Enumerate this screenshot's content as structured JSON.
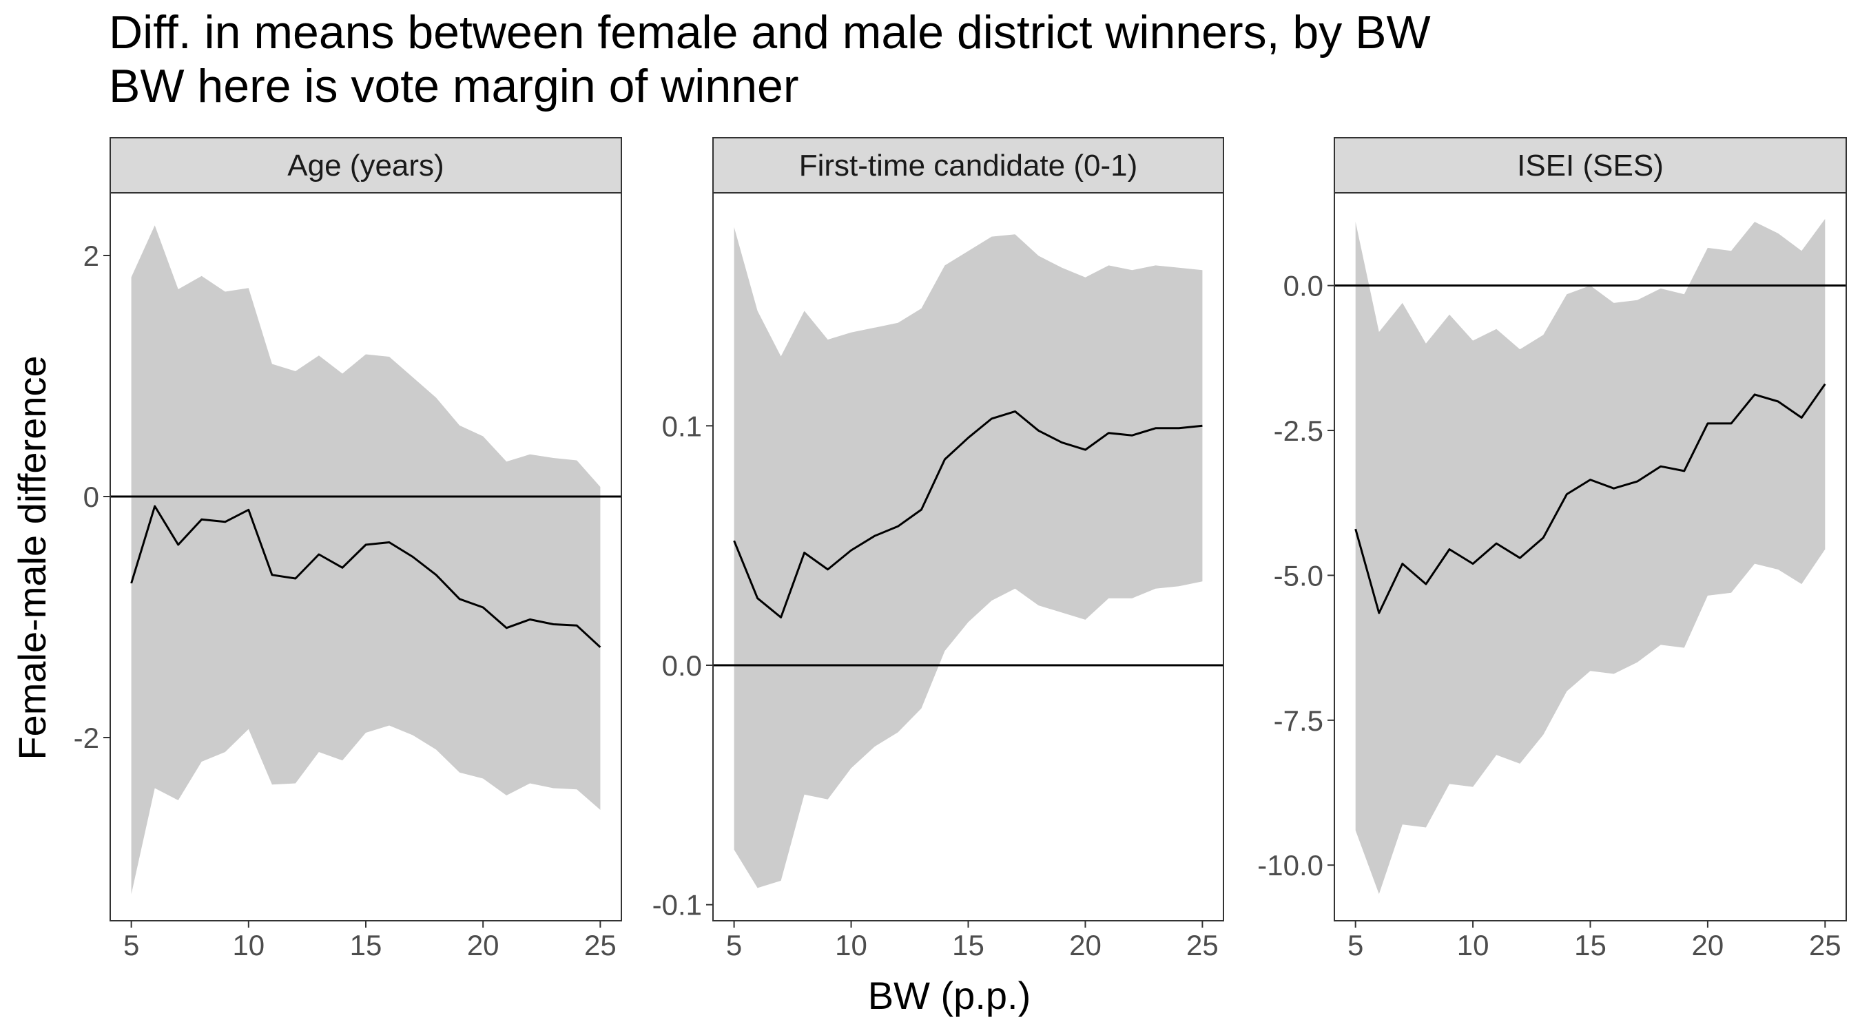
{
  "title": "Diff. in means between female and male district winners, by BW",
  "subtitle": "BW here is vote margin of winner",
  "xlabel": "BW (p.p.)",
  "ylabel": "Female-male difference",
  "colors": {
    "ribbon": "#cccccc",
    "line": "#000000",
    "strip": "#d9d9d9",
    "panel_border": "#333333"
  },
  "chart_data": [
    {
      "type": "line",
      "panel_title": "Age (years)",
      "x": [
        5,
        6,
        7,
        8,
        9,
        10,
        11,
        12,
        13,
        14,
        15,
        16,
        17,
        18,
        19,
        20,
        21,
        22,
        23,
        24,
        25
      ],
      "series": [
        {
          "values": [
            -0.72,
            -0.08,
            -0.4,
            -0.19,
            -0.21,
            -0.11,
            -0.65,
            -0.68,
            -0.48,
            -0.59,
            -0.4,
            -0.38,
            -0.5,
            -0.65,
            -0.85,
            -0.92,
            -1.09,
            -1.02,
            -1.06,
            -1.07,
            -1.25
          ],
          "ci_low": [
            -3.3,
            -2.42,
            -2.52,
            -2.2,
            -2.12,
            -1.93,
            -2.39,
            -2.38,
            -2.12,
            -2.19,
            -1.96,
            -1.9,
            -1.98,
            -2.1,
            -2.29,
            -2.34,
            -2.48,
            -2.38,
            -2.42,
            -2.43,
            -2.6
          ],
          "ci_high": [
            1.82,
            2.25,
            1.72,
            1.83,
            1.7,
            1.73,
            1.1,
            1.04,
            1.17,
            1.02,
            1.18,
            1.16,
            0.99,
            0.82,
            0.59,
            0.5,
            0.29,
            0.35,
            0.32,
            0.3,
            0.08
          ]
        }
      ],
      "xlim": [
        4.1,
        25.9
      ],
      "ylim": [
        -3.52,
        2.52
      ],
      "xticks": [
        5,
        10,
        15,
        20,
        25
      ],
      "yticks": [
        2,
        0,
        -2
      ],
      "ytick_labels": [
        "2",
        "0",
        "-2"
      ],
      "hline": 0
    },
    {
      "type": "line",
      "panel_title": "First-time candidate (0-1)",
      "x": [
        5,
        6,
        7,
        8,
        9,
        10,
        11,
        12,
        13,
        14,
        15,
        16,
        17,
        18,
        19,
        20,
        21,
        22,
        23,
        24,
        25
      ],
      "series": [
        {
          "values": [
            0.052,
            0.028,
            0.02,
            0.047,
            0.04,
            0.048,
            0.054,
            0.058,
            0.065,
            0.086,
            0.095,
            0.103,
            0.106,
            0.098,
            0.093,
            0.09,
            0.097,
            0.096,
            0.099,
            0.099,
            0.1
          ],
          "ci_low": [
            -0.077,
            -0.093,
            -0.09,
            -0.054,
            -0.056,
            -0.043,
            -0.034,
            -0.028,
            -0.018,
            0.006,
            0.018,
            0.027,
            0.032,
            0.025,
            0.022,
            0.019,
            0.028,
            0.028,
            0.032,
            0.033,
            0.035
          ],
          "ci_high": [
            0.183,
            0.148,
            0.129,
            0.148,
            0.136,
            0.139,
            0.141,
            0.143,
            0.149,
            0.167,
            0.173,
            0.179,
            0.18,
            0.171,
            0.166,
            0.162,
            0.167,
            0.165,
            0.167,
            0.166,
            0.165
          ]
        }
      ],
      "xlim": [
        4.1,
        25.9
      ],
      "ylim": [
        -0.1067,
        0.1973
      ],
      "xticks": [
        5,
        10,
        15,
        20,
        25
      ],
      "yticks": [
        0.1,
        0,
        -0.1
      ],
      "ytick_labels": [
        "0.1",
        "0.0",
        "-0.1"
      ],
      "hline": 0
    },
    {
      "type": "line",
      "panel_title": "ISEI (SES)",
      "x": [
        5,
        6,
        7,
        8,
        9,
        10,
        11,
        12,
        13,
        14,
        15,
        16,
        17,
        18,
        19,
        20,
        21,
        22,
        23,
        24,
        25
      ],
      "series": [
        {
          "values": [
            -4.2,
            -5.65,
            -4.8,
            -5.15,
            -4.55,
            -4.8,
            -4.45,
            -4.7,
            -4.35,
            -3.6,
            -3.35,
            -3.5,
            -3.38,
            -3.12,
            -3.2,
            -2.38,
            -2.38,
            -1.88,
            -2.0,
            -2.28,
            -1.7
          ],
          "ci_low": [
            -9.4,
            -10.5,
            -9.3,
            -9.35,
            -8.6,
            -8.65,
            -8.1,
            -8.25,
            -7.75,
            -7.0,
            -6.65,
            -6.7,
            -6.5,
            -6.2,
            -6.25,
            -5.35,
            -5.3,
            -4.8,
            -4.9,
            -5.15,
            -4.55
          ],
          "ci_high": [
            1.1,
            -0.8,
            -0.3,
            -1.0,
            -0.5,
            -0.95,
            -0.75,
            -1.1,
            -0.85,
            -0.15,
            0.0,
            -0.3,
            -0.25,
            -0.05,
            -0.15,
            0.65,
            0.6,
            1.1,
            0.9,
            0.6,
            1.15
          ]
        }
      ],
      "xlim": [
        4.1,
        25.9
      ],
      "ylim": [
        -10.96,
        1.6
      ],
      "xticks": [
        5,
        10,
        15,
        20,
        25
      ],
      "yticks": [
        0,
        -2.5,
        -5,
        -7.5,
        -10
      ],
      "ytick_labels": [
        "0.0",
        "-2.5",
        "-5.0",
        "-7.5",
        "-10.0"
      ],
      "hline": 0
    }
  ]
}
